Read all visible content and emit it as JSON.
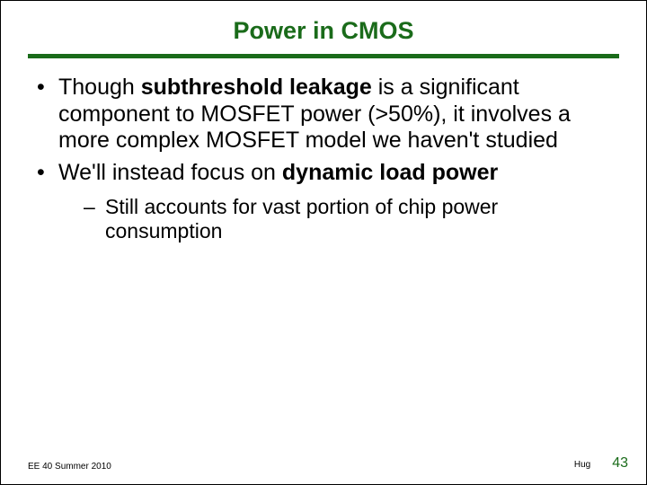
{
  "colors": {
    "title_color": "#1a6b1a",
    "rule_color": "#1a6b1a",
    "text_color": "#000000",
    "background": "#ffffff",
    "page_num_color": "#1a6b1a"
  },
  "typography": {
    "title_fontsize": 27,
    "body_fontsize": 25,
    "sub_fontsize": 23,
    "footer_fontsize": 10,
    "page_num_fontsize": 16,
    "font_family": "Arial"
  },
  "title": "Power in CMOS",
  "bullets": [
    {
      "pre": "Though ",
      "bold1": "subthreshold leakage",
      "post": " is a significant component to MOSFET power (>50%), it involves a more complex MOSFET model we haven't studied"
    },
    {
      "pre": "We'll instead focus on ",
      "bold1": "dynamic load power",
      "post": "",
      "sub": [
        "Still accounts for vast portion of chip power consumption"
      ]
    }
  ],
  "footer": {
    "left": "EE 40 Summer 2010",
    "author": "Hug",
    "page": "43"
  }
}
